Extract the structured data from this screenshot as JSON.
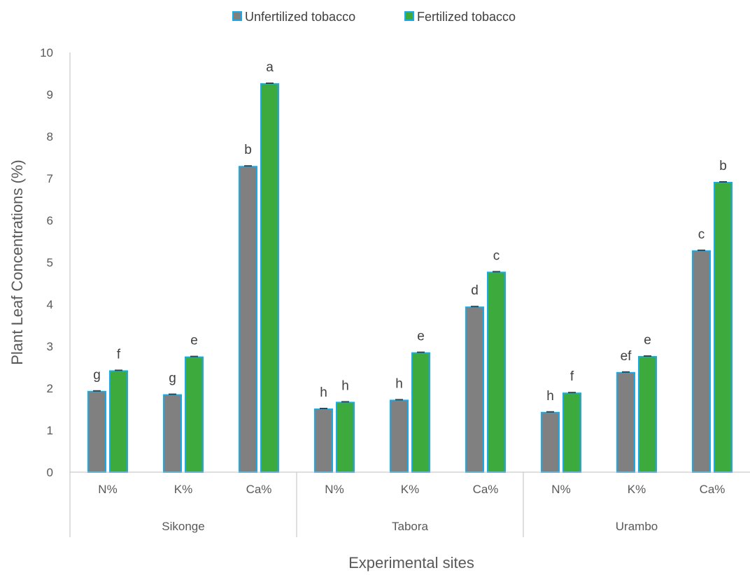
{
  "chart_data": {
    "type": "bar",
    "title": "",
    "xlabel": "Experimental sites",
    "ylabel": "Plant Leaf Concentrations (%)",
    "ylim": [
      0,
      10
    ],
    "yticks": [
      0,
      1,
      2,
      3,
      4,
      5,
      6,
      7,
      8,
      9,
      10
    ],
    "grid": false,
    "legend_position": "top",
    "groups": [
      "Sikonge",
      "Tabora",
      "Urambo"
    ],
    "categories": [
      "N%",
      "K%",
      "Ca%",
      "N%",
      "K%",
      "Ca%",
      "N%",
      "K%",
      "Ca%"
    ],
    "series": [
      {
        "name": "Unfertilized tobacco",
        "color": "#808080",
        "values": [
          1.92,
          1.84,
          7.28,
          1.5,
          1.71,
          3.93,
          1.42,
          2.37,
          5.27
        ],
        "labels": [
          "g",
          "g",
          "b",
          "h",
          "h",
          "d",
          "h",
          "ef",
          "c"
        ]
      },
      {
        "name": "Fertilized tobacco",
        "color": "#3daa3d",
        "values": [
          2.41,
          2.74,
          9.25,
          1.66,
          2.84,
          4.76,
          1.88,
          2.75,
          6.9
        ],
        "labels": [
          "f",
          "e",
          "a",
          "h",
          "e",
          "c",
          "f",
          "e",
          "b"
        ]
      }
    ],
    "bar_border_color": "#1ca9e6"
  }
}
